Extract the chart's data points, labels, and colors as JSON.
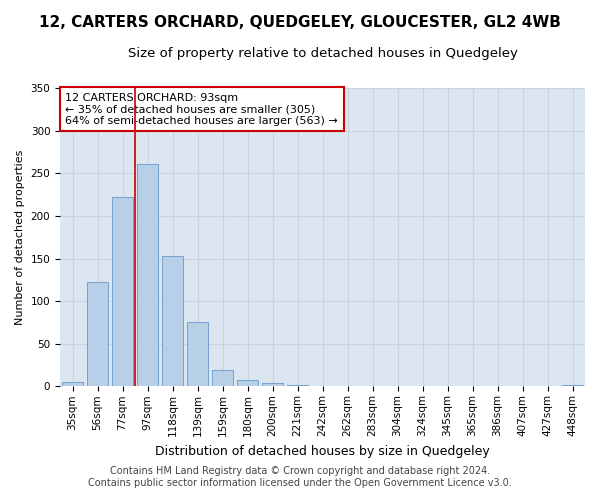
{
  "title": "12, CARTERS ORCHARD, QUEDGELEY, GLOUCESTER, GL2 4WB",
  "subtitle": "Size of property relative to detached houses in Quedgeley",
  "xlabel": "Distribution of detached houses by size in Quedgeley",
  "ylabel": "Number of detached properties",
  "categories": [
    "35sqm",
    "56sqm",
    "77sqm",
    "97sqm",
    "118sqm",
    "139sqm",
    "159sqm",
    "180sqm",
    "200sqm",
    "221sqm",
    "242sqm",
    "262sqm",
    "283sqm",
    "304sqm",
    "324sqm",
    "345sqm",
    "365sqm",
    "386sqm",
    "407sqm",
    "427sqm",
    "448sqm"
  ],
  "values": [
    5,
    122,
    222,
    261,
    153,
    76,
    19,
    8,
    4,
    2,
    0,
    0,
    1,
    0,
    0,
    0,
    0,
    0,
    0,
    0,
    2
  ],
  "bar_color": "#b8cfe8",
  "bar_edge_color": "#6699cc",
  "grid_color": "#c8d4e4",
  "background_color": "#dce6f0",
  "fig_background_color": "#ffffff",
  "property_line_x": 2.5,
  "annotation_text": "12 CARTERS ORCHARD: 93sqm\n← 35% of detached houses are smaller (305)\n64% of semi-detached houses are larger (563) →",
  "annotation_box_color": "#ffffff",
  "annotation_box_edge_color": "#cc0000",
  "property_line_color": "#cc0000",
  "footer_line1": "Contains HM Land Registry data © Crown copyright and database right 2024.",
  "footer_line2": "Contains public sector information licensed under the Open Government Licence v3.0.",
  "ylim": [
    0,
    350
  ],
  "title_fontsize": 11,
  "subtitle_fontsize": 9.5,
  "xlabel_fontsize": 9,
  "ylabel_fontsize": 8,
  "tick_fontsize": 7.5,
  "annotation_fontsize": 8,
  "footer_fontsize": 7
}
